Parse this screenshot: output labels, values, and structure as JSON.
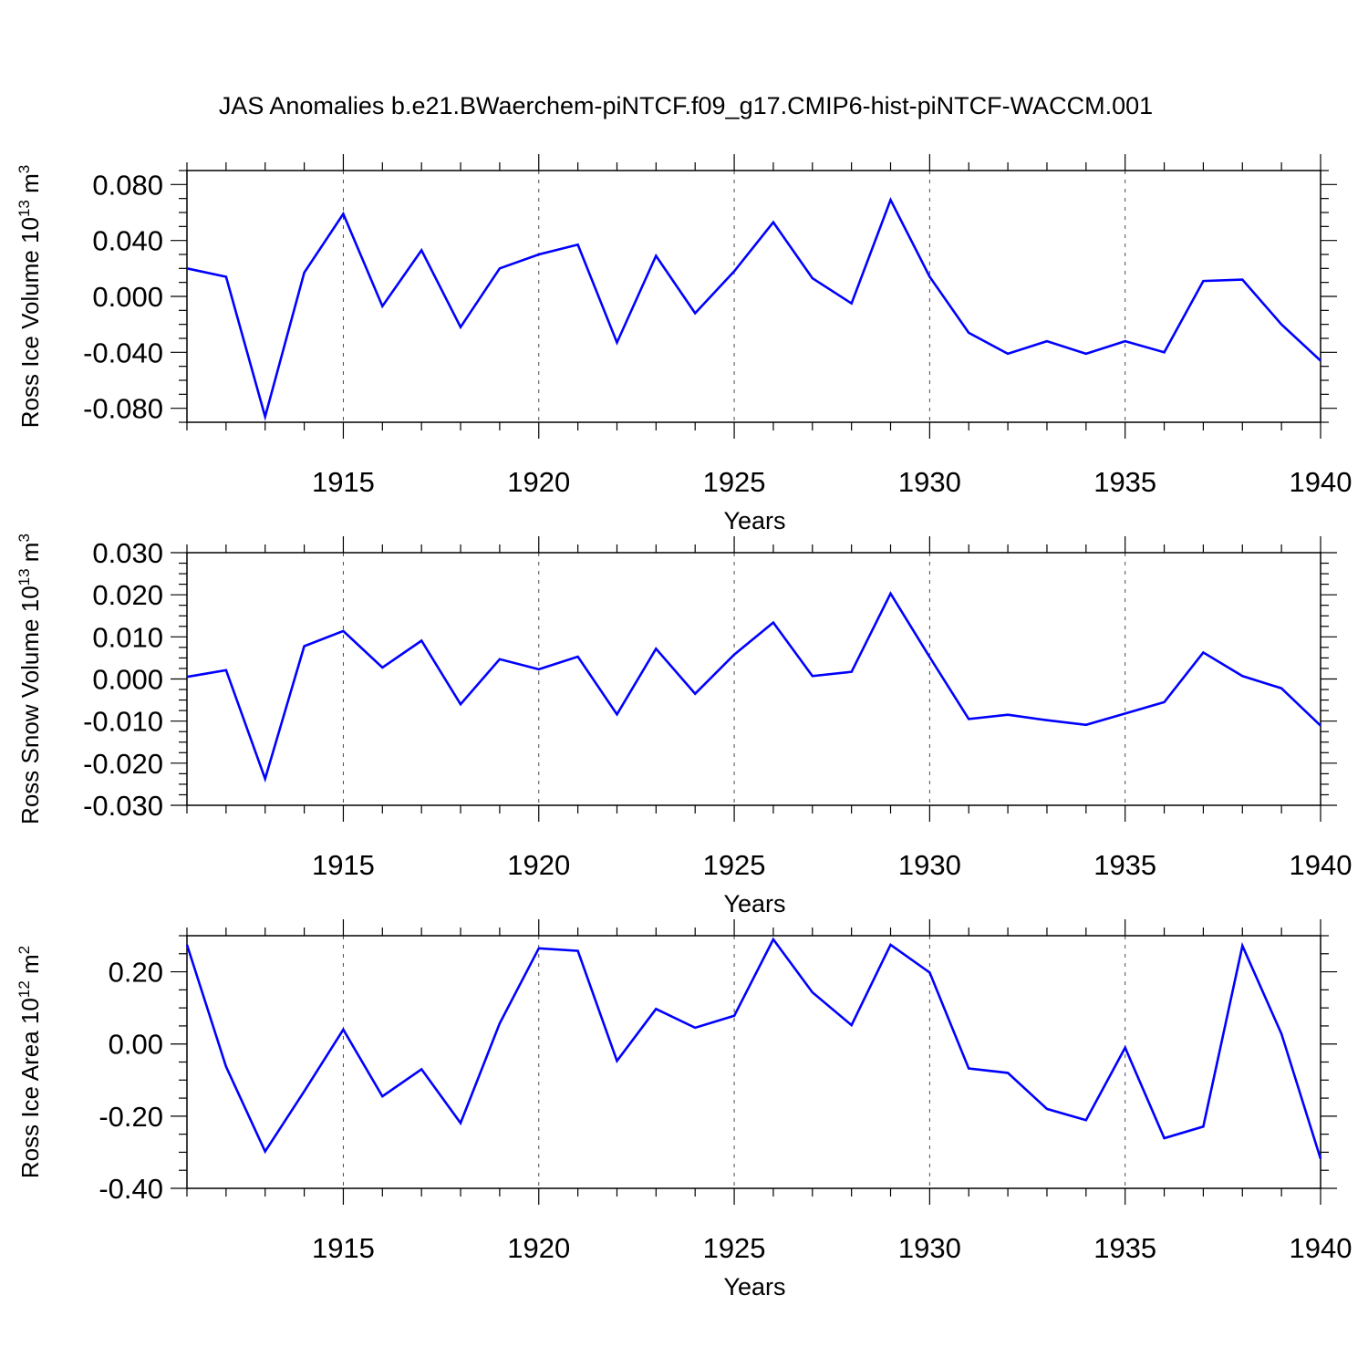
{
  "title": "JAS Anomalies b.e21.BWaerchem-piNTCF.f09_g17.CMIP6-hist-piNTCF-WACCM.001",
  "colors": {
    "series_line": "#0000ff",
    "axis": "#000000",
    "grid": "#000000"
  },
  "chart_data": [
    {
      "type": "line",
      "ylabel_prefix": "Ross Ice Volume 10",
      "ylabel_exp": "13",
      "ylabel_unit": " m",
      "ylabel_unit_exp": "3",
      "xlabel": "Years",
      "xlim": [
        1911,
        1940
      ],
      "ylim": [
        -0.09,
        0.09
      ],
      "yticks": [
        -0.08,
        -0.04,
        0.0,
        0.04,
        0.08
      ],
      "ytick_labels": [
        "-0.080",
        "-0.040",
        "0.000",
        "0.040",
        "0.080"
      ],
      "yminor_step": 0.01,
      "xticks": [
        1915,
        1920,
        1925,
        1930,
        1935,
        1940
      ],
      "xtick_labels": [
        "1915",
        "1920",
        "1925",
        "1930",
        "1935",
        "1940"
      ],
      "grid_x": [
        1915,
        1920,
        1925,
        1930,
        1935
      ],
      "x": [
        1911,
        1912,
        1913,
        1914,
        1915,
        1916,
        1917,
        1918,
        1919,
        1920,
        1921,
        1922,
        1923,
        1924,
        1925,
        1926,
        1927,
        1928,
        1929,
        1930,
        1931,
        1932,
        1933,
        1934,
        1935,
        1936,
        1937,
        1938,
        1939,
        1940
      ],
      "series": [
        {
          "name": "Ross Ice Volume",
          "values": [
            0.02,
            0.014,
            -0.086,
            0.017,
            0.059,
            -0.007,
            0.033,
            -0.022,
            0.02,
            0.03,
            0.037,
            -0.033,
            0.029,
            -0.012,
            0.018,
            0.053,
            0.013,
            -0.005,
            0.069,
            0.014,
            -0.026,
            -0.041,
            -0.032,
            -0.041,
            -0.032,
            -0.04,
            0.011,
            0.012,
            -0.02,
            -0.046
          ]
        }
      ]
    },
    {
      "type": "line",
      "ylabel_prefix": "Ross Snow Volume 10",
      "ylabel_exp": "13",
      "ylabel_unit": " m",
      "ylabel_unit_exp": "3",
      "xlabel": "Years",
      "xlim": [
        1911,
        1940
      ],
      "ylim": [
        -0.03,
        0.03
      ],
      "yticks": [
        -0.03,
        -0.02,
        -0.01,
        0.0,
        0.01,
        0.02,
        0.03
      ],
      "ytick_labels": [
        "-0.030",
        "-0.020",
        "-0.010",
        "0.000",
        "0.010",
        "0.020",
        "0.030"
      ],
      "yminor_step": 0.0025,
      "xticks": [
        1915,
        1920,
        1925,
        1930,
        1935,
        1940
      ],
      "xtick_labels": [
        "1915",
        "1920",
        "1925",
        "1930",
        "1935",
        "1940"
      ],
      "grid_x": [
        1915,
        1920,
        1925,
        1930,
        1935
      ],
      "x": [
        1911,
        1912,
        1913,
        1914,
        1915,
        1916,
        1917,
        1918,
        1919,
        1920,
        1921,
        1922,
        1923,
        1924,
        1925,
        1926,
        1927,
        1928,
        1929,
        1930,
        1931,
        1932,
        1933,
        1934,
        1935,
        1936,
        1937,
        1938,
        1939,
        1940
      ],
      "series": [
        {
          "name": "Ross Snow Volume",
          "values": [
            0.0005,
            0.0021,
            -0.0237,
            0.0078,
            0.0114,
            0.0027,
            0.0091,
            -0.006,
            0.0047,
            0.0023,
            0.0053,
            -0.0084,
            0.0072,
            -0.0035,
            0.0058,
            0.0134,
            0.0007,
            0.0017,
            0.0203,
            0.0052,
            -0.0095,
            -0.0085,
            -0.0098,
            -0.0109,
            -0.0082,
            -0.0055,
            0.0063,
            0.0007,
            -0.0022,
            -0.0111
          ]
        }
      ]
    },
    {
      "type": "line",
      "ylabel_prefix": "Ross Ice Area 10",
      "ylabel_exp": "12",
      "ylabel_unit": " m",
      "ylabel_unit_exp": "2",
      "xlabel": "Years",
      "xlim": [
        1911,
        1940
      ],
      "ylim": [
        -0.4,
        0.3
      ],
      "yticks": [
        -0.4,
        -0.2,
        0.0,
        0.2
      ],
      "ytick_labels": [
        "-0.40",
        "-0.20",
        "0.00",
        "0.20"
      ],
      "yminor_step": 0.05,
      "xticks": [
        1915,
        1920,
        1925,
        1930,
        1935,
        1940
      ],
      "xtick_labels": [
        "1915",
        "1920",
        "1925",
        "1930",
        "1935",
        "1940"
      ],
      "grid_x": [
        1915,
        1920,
        1925,
        1930,
        1935
      ],
      "x": [
        1911,
        1912,
        1913,
        1914,
        1915,
        1916,
        1917,
        1918,
        1919,
        1920,
        1921,
        1922,
        1923,
        1924,
        1925,
        1926,
        1927,
        1928,
        1929,
        1930,
        1931,
        1932,
        1933,
        1934,
        1935,
        1936,
        1937,
        1938,
        1939,
        1940
      ],
      "series": [
        {
          "name": "Ross Ice Area",
          "values": [
            0.275,
            -0.063,
            -0.298,
            -0.131,
            0.04,
            -0.145,
            -0.07,
            -0.219,
            0.057,
            0.265,
            0.258,
            -0.047,
            0.097,
            0.045,
            0.078,
            0.29,
            0.143,
            0.052,
            0.275,
            0.198,
            -0.068,
            -0.08,
            -0.18,
            -0.211,
            -0.01,
            -0.261,
            -0.229,
            0.272,
            0.028,
            -0.318
          ]
        }
      ]
    }
  ]
}
